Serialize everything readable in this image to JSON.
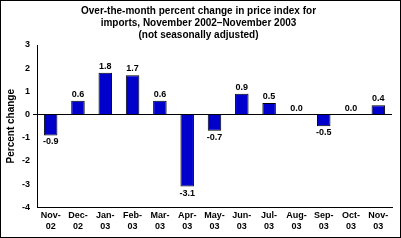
{
  "chart_data": {
    "type": "bar",
    "title": [
      "Over-the-month percent change in price index for",
      "imports, November 2002–November 2003",
      "(not seasonally adjusted)"
    ],
    "y_label": "Percent change",
    "categories": [
      "Nov-02",
      "Dec-02",
      "Jan-03",
      "Feb-03",
      "Mar-03",
      "Apr-03",
      "May-03",
      "Jun-03",
      "Jul-03",
      "Aug-03",
      "Sep-03",
      "Oct-03",
      "Nov-03"
    ],
    "values": [
      -0.9,
      0.6,
      1.8,
      1.7,
      0.6,
      -3.1,
      -0.7,
      0.9,
      0.5,
      0.0,
      -0.5,
      0.0,
      0.4
    ],
    "value_labels": [
      "-0.9",
      "0.6",
      "1.8",
      "1.7",
      "0.6",
      "-3.1",
      "-0.7",
      "0.9",
      "0.5",
      "0.0",
      "-0.5",
      "0.0",
      "0.4"
    ],
    "color": "#0000cc",
    "ylim": [
      -4,
      3
    ],
    "yticks": [
      -4,
      -3,
      -2,
      -1,
      0,
      1,
      2,
      3
    ],
    "grid": false,
    "data_labels": true
  }
}
